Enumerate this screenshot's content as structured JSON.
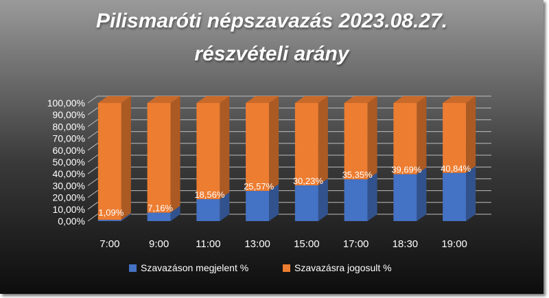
{
  "chart_data": {
    "type": "bar",
    "stacked": true,
    "title": "Pilismaróti népszavazás 2023.08.27.",
    "subtitle": "részvételi arány",
    "categories": [
      "7:00",
      "9:00",
      "11:00",
      "13:00",
      "15:00",
      "17:00",
      "18:30",
      "19:00"
    ],
    "series": [
      {
        "name": "Szavazáson megjelent %",
        "values": [
          1.09,
          7.16,
          18.56,
          25.57,
          30.23,
          35.35,
          39.69,
          40.84
        ],
        "color": "#4472c4"
      },
      {
        "name": "Szavazásra jogosult %",
        "values": [
          98.91,
          92.84,
          81.44,
          74.43,
          69.77,
          64.65,
          60.31,
          59.16
        ],
        "color": "#ed7d31"
      }
    ],
    "data_labels": [
      "1,09%",
      "7,16%",
      "18,56%",
      "25,57%",
      "30,23%",
      "35,35%",
      "39,69%",
      "40,84%"
    ],
    "y_ticks": [
      "0,00%",
      "10,00%",
      "20,00%",
      "30,00%",
      "40,00%",
      "50,00%",
      "60,00%",
      "70,00%",
      "80,00%",
      "90,00%",
      "100,00%"
    ],
    "ylim": [
      0,
      100
    ],
    "grid": true,
    "legend_position": "bottom",
    "three_d": true
  }
}
